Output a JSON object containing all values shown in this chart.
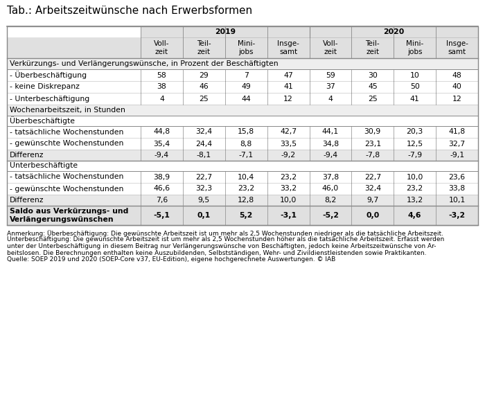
{
  "title": "Tab.: Arbeitszeitwünsche nach Erwerbsformen",
  "col_labels": [
    "Voll-\nzeit",
    "Teil-\nzeit",
    "Mini-\njobs",
    "Insge-\nsamt",
    "Voll-\nzeit",
    "Teil-\nzeit",
    "Mini-\njobs",
    "Insge-\nsamt"
  ],
  "rows": [
    {
      "type": "section",
      "text": "Verkürzungs- und Verlängerungswünsche, in Prozent der Beschäftigten",
      "values": []
    },
    {
      "type": "data",
      "text": "- Überbeschäftigung",
      "values": [
        "58",
        "29",
        "7",
        "47",
        "59",
        "30",
        "10",
        "48"
      ]
    },
    {
      "type": "data",
      "text": "- keine Diskrepanz",
      "values": [
        "38",
        "46",
        "49",
        "41",
        "37",
        "45",
        "50",
        "40"
      ]
    },
    {
      "type": "data",
      "text": "- Unterbeschäftigung",
      "values": [
        "4",
        "25",
        "44",
        "12",
        "4",
        "25",
        "41",
        "12"
      ]
    },
    {
      "type": "section",
      "text": "Wochenarbeitszeit, in Stunden",
      "values": []
    },
    {
      "type": "subsection",
      "text": "Überbeschäftigte",
      "values": []
    },
    {
      "type": "data",
      "text": "- tatsächliche Wochenstunden",
      "values": [
        "44,8",
        "32,4",
        "15,8",
        "42,7",
        "44,1",
        "30,9",
        "20,3",
        "41,8"
      ]
    },
    {
      "type": "data",
      "text": "- gewünschte Wochenstunden",
      "values": [
        "35,4",
        "24,4",
        "8,8",
        "33,5",
        "34,8",
        "23,1",
        "12,5",
        "32,7"
      ]
    },
    {
      "type": "differenz",
      "text": "Differenz",
      "values": [
        "-9,4",
        "-8,1",
        "-7,1",
        "-9,2",
        "-9,4",
        "-7,8",
        "-7,9",
        "-9,1"
      ]
    },
    {
      "type": "subsection",
      "text": "Unterbeschäftigte",
      "values": []
    },
    {
      "type": "data",
      "text": "- tatsächliche Wochenstunden",
      "values": [
        "38,9",
        "22,7",
        "10,4",
        "23,2",
        "37,8",
        "22,7",
        "10,0",
        "23,6"
      ]
    },
    {
      "type": "data",
      "text": "- gewünschte Wochenstunden",
      "values": [
        "46,6",
        "32,3",
        "23,2",
        "33,2",
        "46,0",
        "32,4",
        "23,2",
        "33,8"
      ]
    },
    {
      "type": "differenz",
      "text": "Differenz",
      "values": [
        "7,6",
        "9,5",
        "12,8",
        "10,0",
        "8,2",
        "9,7",
        "13,2",
        "10,1"
      ]
    },
    {
      "type": "saldo",
      "text": "Saldo aus Verkürzungs- und\nVerlängerungswünschen",
      "values": [
        "-5,1",
        "0,1",
        "5,2",
        "-3,1",
        "-5,2",
        "0,0",
        "4,6",
        "-3,2"
      ]
    }
  ],
  "footer_lines": [
    "Anmerkung: Überbeschäftigung: Die gewünschte Arbeitszeit ist um mehr als 2,5 Wochenstunden niedriger als die tatsächliche Arbeitszeit.",
    "Unterbeschäftigung: Die gewünschte Arbeitszeit ist um mehr als 2,5 Wochenstunden höher als die tatsächliche Arbeitszeit. Erfasst werden",
    "unter der Unterbeschäftigung in diesem Beitrag nur Verlängerungswünsche von Beschäftigten, jedoch keine Arbeitszeitwünsche von Ar-",
    "beitslosen. Die Berechnungen enthalten keine Auszubildenden, Selbstständigen, Wehr- und Zivildienstleistenden sowie Praktikanten.",
    "Quelle: SOEP 2019 und 2020 (SOEP-Core v37, EU-Edition), eigene hochgerechnete Auswertungen. © IAB"
  ],
  "bg_color": "#ffffff",
  "header_bg": "#e0e0e0",
  "section_bg": "#eeeeee",
  "differenz_bg": "#e8e8e8",
  "saldo_bg": "#e0e0e0",
  "border_color": "#888888",
  "thin_line": "#bbbbbb",
  "text_color": "#000000",
  "title_fontsize": 11.0,
  "header_fontsize": 7.8,
  "data_fontsize": 7.8,
  "footer_fontsize": 6.5
}
